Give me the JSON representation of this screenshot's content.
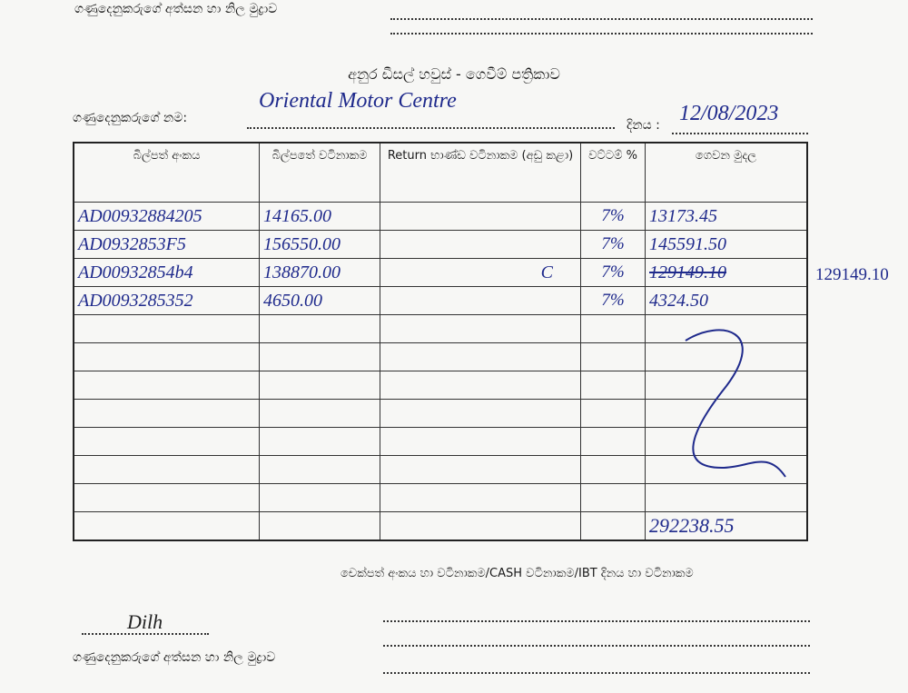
{
  "top_section": {
    "signature_label": "ගණුදෙනුකරුගේ අත්සන හා නිල මුද්‍රාව"
  },
  "header": {
    "title": "අනුර ඩීසල් හවුස් - ගෙවීම් පත්‍රිකාව",
    "customer_label": "ගණුදෙනුකරුගේ නම:",
    "customer_value": "Oriental Motor Centre",
    "date_label": "දිනය :",
    "date_value": "12/08/2023"
  },
  "table": {
    "columns": [
      "බිල්පත් අංකය",
      "බිල්පතේ වටිනාකම",
      "Return භාණ්ඩ වටිනාකම (අඩු කළා)",
      "වට්ටම් %",
      "ගෙවන මුදල"
    ],
    "rows": [
      {
        "bill_no": "AD00932884205",
        "bill_value": "14165.00",
        "return_value": "",
        "discount": "7%",
        "payment": "13173.45"
      },
      {
        "bill_no": "AD0932853F5",
        "bill_value": "156550.00",
        "return_value": "",
        "discount": "7%",
        "payment": "145591.50"
      },
      {
        "bill_no": "AD00932854b4",
        "bill_value": "138870.00",
        "return_value": "C",
        "discount": "7%",
        "payment": "129149.10",
        "payment_note": "129149.10"
      },
      {
        "bill_no": "AD0093285352",
        "bill_value": "4650.00",
        "return_value": "",
        "discount": "7%",
        "payment": "4324.50"
      }
    ],
    "total": "292238.55"
  },
  "footer": {
    "payment_details_label": "චෙක්පත් අංකය හා වටිනාකම/CASH වටිනාකම/IBT දිනය හා වටිනාකම",
    "signature_label": "ගණුදෙනුකරුගේ අත්සන හා නිල මුද්‍රාව",
    "signature": "Dilh"
  }
}
